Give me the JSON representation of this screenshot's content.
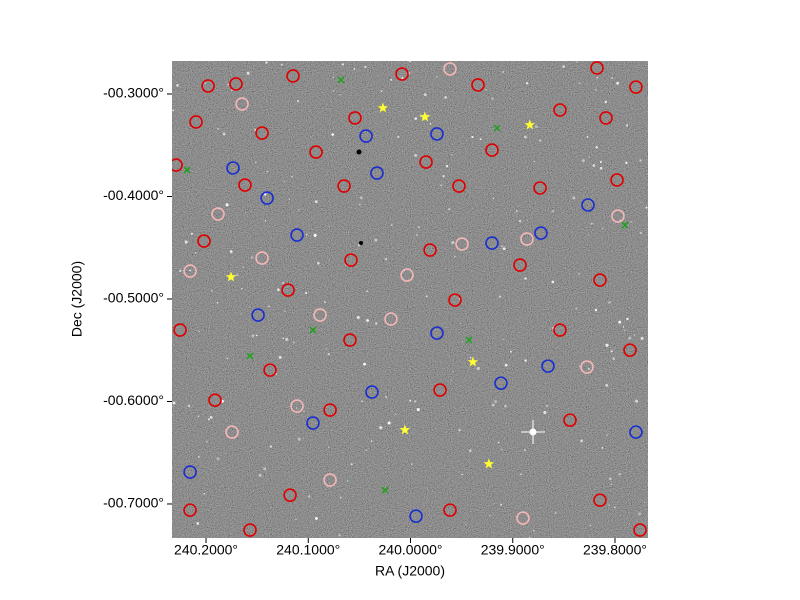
{
  "chart_data": {
    "type": "scatter",
    "xlabel": "RA (J2000)",
    "ylabel": "Dec (J2000)",
    "xlim": [
      240.2333,
      239.7677
    ],
    "ylim": [
      -0.7332,
      -0.2678
    ],
    "xticks": [
      {
        "value": 240.2,
        "label": "240.2000°"
      },
      {
        "value": 240.1,
        "label": "240.1000°"
      },
      {
        "value": 240.0,
        "label": "240.0000°"
      },
      {
        "value": 239.9,
        "label": "239.9000°"
      },
      {
        "value": 239.8,
        "label": "239.8000°"
      }
    ],
    "yticks": [
      {
        "value": -0.3,
        "label": "-00.3000°"
      },
      {
        "value": -0.4,
        "label": "-00.4000°"
      },
      {
        "value": -0.5,
        "label": "-00.5000°"
      },
      {
        "value": -0.6,
        "label": "-00.6000°"
      },
      {
        "value": -0.7,
        "label": "-00.7000°"
      }
    ],
    "series": [
      {
        "color": "#e00000",
        "marker": "circle",
        "x": [
          240.198,
          240.1707,
          240.1149,
          240.0083,
          239.934,
          239.8176,
          239.7795,
          240.2098,
          240.1452,
          240.0924,
          240.0543,
          239.9848,
          239.9203,
          239.8538,
          239.8088,
          240.2293,
          240.1619,
          240.065,
          239.9526,
          239.8733,
          239.798,
          240.202,
          240.1198,
          240.0582,
          239.9809,
          239.8929,
          239.8147,
          240.2254,
          240.1374,
          240.0592,
          239.9565,
          239.8538,
          239.7853,
          240.1912,
          240.0787,
          239.9711,
          239.844,
          240.2156,
          240.1178,
          239.9614,
          239.8147,
          239.7755,
          240.157
        ],
        "y": [
          -0.2922,
          -0.2902,
          -0.2824,
          -0.2805,
          -0.2912,
          -0.2746,
          -0.2932,
          -0.3273,
          -0.3381,
          -0.3566,
          -0.3234,
          -0.3664,
          -0.3547,
          -0.3156,
          -0.3234,
          -0.3693,
          -0.3888,
          -0.3898,
          -0.3898,
          -0.3917,
          -0.3839,
          -0.4435,
          -0.4913,
          -0.462,
          -0.4523,
          -0.4669,
          -0.4815,
          -0.5303,
          -0.5694,
          -0.5401,
          -0.5011,
          -0.5303,
          -0.5499,
          -0.5987,
          -0.6084,
          -0.5889,
          -0.6182,
          -0.706,
          -0.6914,
          -0.706,
          -0.6963,
          -0.7255,
          -0.7255
        ]
      },
      {
        "color": "#f4b6b6",
        "marker": "circle",
        "x": [
          240.1883,
          240.2156,
          240.1452,
          240.1648,
          240.0885,
          240.0191,
          239.9614,
          239.9496,
          239.8861,
          239.8274,
          240.1746,
          240.111,
          240.0787,
          239.89,
          240.0034,
          239.7971
        ],
        "y": [
          -0.4171,
          -0.4728,
          -0.4601,
          -0.3098,
          -0.5157,
          -0.5196,
          -0.2756,
          -0.4464,
          -0.4415,
          -0.5664,
          -0.6299,
          -0.6045,
          -0.6767,
          -0.7138,
          -0.4767,
          -0.4191
        ]
      },
      {
        "color": "#1a2fd0",
        "marker": "circle",
        "x": [
          240.1736,
          240.1403,
          240.111,
          240.0435,
          240.0328,
          239.9741,
          239.9203,
          239.8264,
          239.8724,
          240.1491,
          239.9741,
          239.8655,
          239.9115,
          240.0377,
          240.0954,
          240.2156,
          239.7795,
          239.9946
        ],
        "y": [
          -0.3722,
          -0.4015,
          -0.4376,
          -0.341,
          -0.3771,
          -0.339,
          -0.4454,
          -0.4083,
          -0.4357,
          -0.5157,
          -0.5333,
          -0.5655,
          -0.5821,
          -0.5908,
          -0.6211,
          -0.6689,
          -0.6299,
          -0.7119
        ]
      },
      {
        "color": "#1fa01f",
        "marker": "cross",
        "x": [
          240.2186,
          240.157,
          240.0954,
          240.068,
          239.9154,
          239.7902,
          240.0249,
          239.9428
        ],
        "y": [
          -0.3742,
          -0.5557,
          -0.5303,
          -0.2863,
          -0.3332,
          -0.4279,
          -0.6865,
          -0.5401
        ]
      },
      {
        "color": "#ffff33",
        "marker": "star",
        "x": [
          240.027,
          239.9859,
          239.8833,
          240.1756,
          239.939,
          240.0055,
          239.9234
        ],
        "y": [
          -0.3137,
          -0.3224,
          -0.3302,
          -0.4785,
          -0.5615,
          -0.6278,
          -0.661
        ]
      }
    ]
  }
}
